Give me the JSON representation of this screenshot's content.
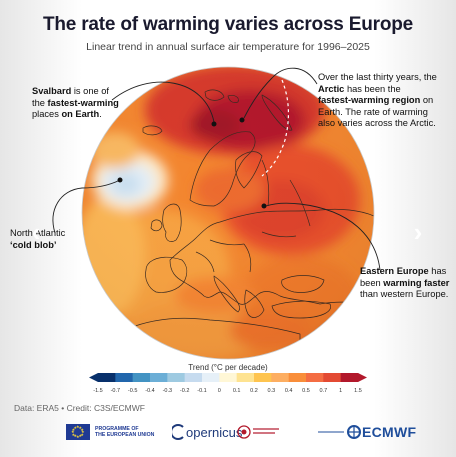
{
  "header": {
    "title": "The rate of warming varies across Europe",
    "subtitle": "Linear trend in annual surface air temperature for 1996–2025"
  },
  "annotations": {
    "svalbard": {
      "parts": [
        {
          "t": "Svalbard",
          "b": true
        },
        {
          "t": " is one of",
          "b": false
        },
        "BR",
        {
          "t": "the ",
          "b": false
        },
        {
          "t": "fastest-warming",
          "b": true
        },
        "BR",
        {
          "t": "places ",
          "b": false
        },
        {
          "t": "on Earth",
          "b": true
        },
        {
          "t": ".",
          "b": false
        }
      ]
    },
    "arctic": {
      "parts": [
        {
          "t": "Over the last thirty years, the",
          "b": false
        },
        "BR",
        {
          "t": "Arctic",
          "b": true
        },
        {
          "t": " has been the",
          "b": false
        },
        "BR",
        {
          "t": "fastest-warming region",
          "b": true
        },
        {
          "t": " on",
          "b": false
        },
        "BR",
        {
          "t": "Earth. The rate of warming",
          "b": false
        },
        "BR",
        {
          "t": "also varies across the Arctic.",
          "b": false
        }
      ]
    },
    "cold_blob": {
      "parts": [
        {
          "t": "North Atlantic",
          "b": false
        },
        "BR",
        {
          "t": "‘cold blob’",
          "b": true
        }
      ]
    },
    "eastern": {
      "parts": [
        {
          "t": "Eastern Europe",
          "b": true
        },
        {
          "t": " has",
          "b": false
        },
        "BR",
        {
          "t": "been ",
          "b": false
        },
        {
          "t": "warming faster",
          "b": true
        },
        "BR",
        {
          "t": "than western Europe.",
          "b": false
        }
      ]
    }
  },
  "navigation": {
    "prev_icon": "chevron-left-icon",
    "next_icon": "chevron-right-icon",
    "prev_label": "‹",
    "next_label": "›"
  },
  "legend": {
    "title": "Trend (°C per decade)",
    "ticks": [
      "-1.5",
      "-0.7",
      "-0.5",
      "-0.4",
      "-0.3",
      "-0.2",
      "-0.1",
      "0",
      "0.1",
      "0.2",
      "0.3",
      "0.4",
      "0.5",
      "0.7",
      "1",
      "1.5"
    ],
    "colors": [
      "#08306b",
      "#2166ac",
      "#4393c3",
      "#6baed6",
      "#9ecae1",
      "#c6dbef",
      "#e6f0f8",
      "#fff7d6",
      "#fee391",
      "#fec44f",
      "#fdae61",
      "#f98e3a",
      "#f46d43",
      "#e34a33",
      "#b2182b"
    ]
  },
  "source": "Data: ERA5 • Credit: C3S/ECMWF",
  "logos": {
    "eu": "PROGRAMME OF\nTHE EUROPEAN UNION",
    "copernicus": "opernicus",
    "ecmwf": "ECMWF"
  },
  "colors": {
    "land_outline": "#3a2a20",
    "globe_base": "#f07b2a",
    "cold_blob": "#d6eaf6",
    "hot": "#b2182b"
  }
}
